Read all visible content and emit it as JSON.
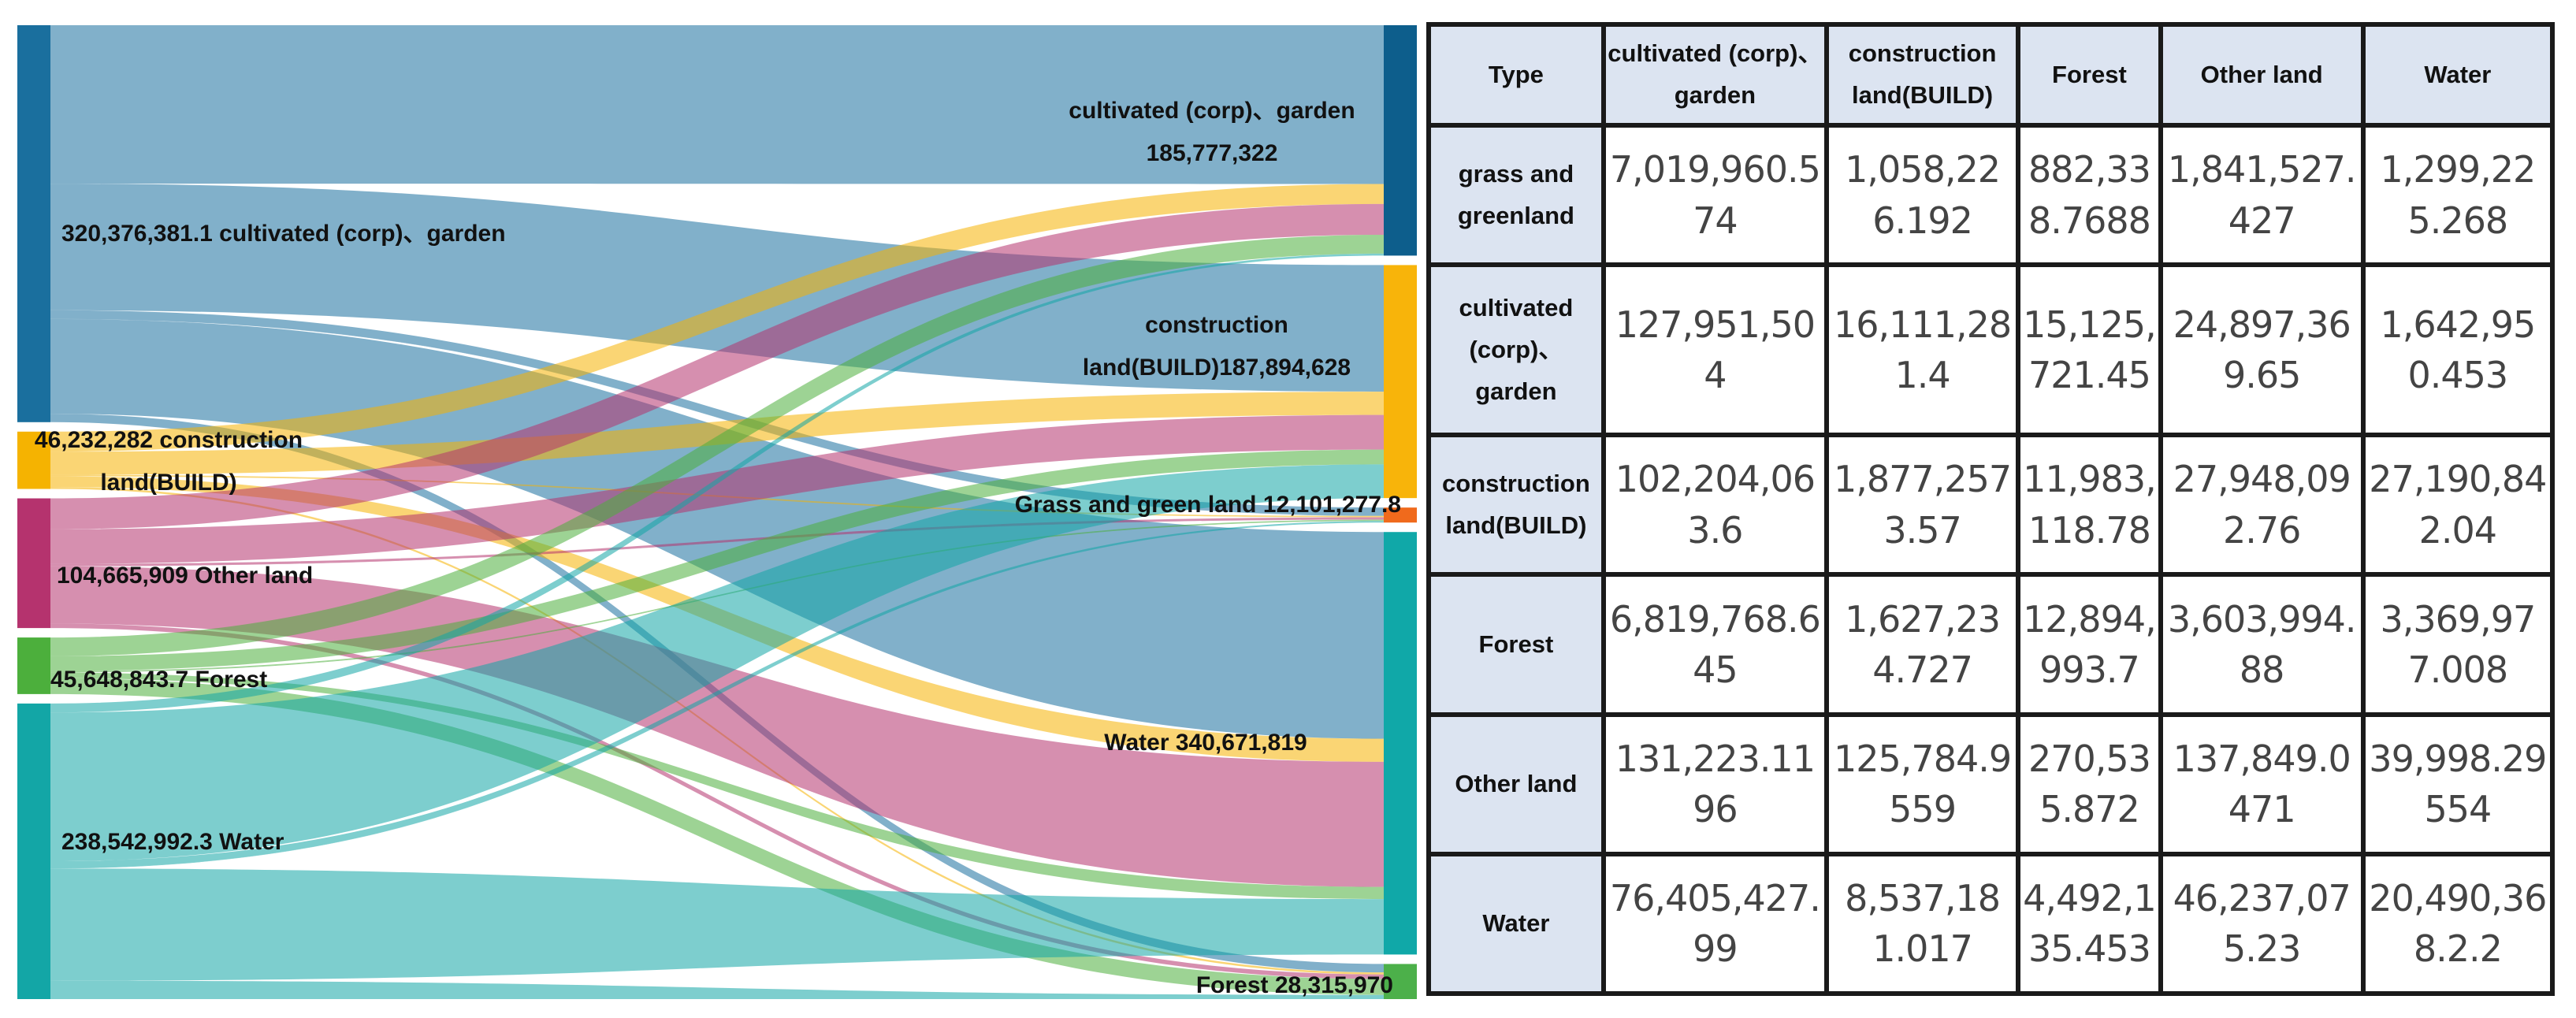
{
  "chart_data": [
    {
      "type": "sankey",
      "title": "",
      "sources": [
        {
          "label": "320,376,381.1 cultivated (corp)、garden",
          "value": 320376381.1,
          "color": "#1a6f9e"
        },
        {
          "label_lines": [
            "46,232,282 construction",
            "land(BUILD)"
          ],
          "value": 46232282,
          "color": "#f5b301"
        },
        {
          "label": "104,665,909 Other land",
          "value": 104665909,
          "color": "#b5336e"
        },
        {
          "label": "45,648,843.7 Forest",
          "value": 45648843.7,
          "color": "#4caf3c"
        },
        {
          "label": "238,542,992.3 Water",
          "value": 238542992.3,
          "color": "#13a6a6"
        }
      ],
      "targets": [
        {
          "label_lines": [
            "cultivated (corp)、garden",
            "185,777,322"
          ],
          "value": 185777322,
          "color": "#0d5e8c"
        },
        {
          "label_lines": [
            "construction",
            "land(BUILD)187,894,628"
          ],
          "value": 187894628,
          "color": "#f8b40a"
        },
        {
          "label": "Grass and green land 12,101,277.8",
          "value": 12101277.8,
          "color": "#f06a1c"
        },
        {
          "label": "Water 340,671,819",
          "value": 340671819,
          "color": "#10a8a8"
        },
        {
          "label": "Forest 28,315,970",
          "value": 28315970,
          "color": "#4cb04a"
        }
      ]
    },
    {
      "type": "table",
      "columns": [
        "Type",
        "cultivated (corp)、garden",
        "construction land(BUILD)",
        "Forest",
        "Other land",
        "Water"
      ],
      "rows": [
        {
          "type": "grass and greenland",
          "values": [
            "7,019,960.574",
            "1,058,226.192",
            "882,338.7688",
            "1,841,527.427",
            "1,299,225.268"
          ]
        },
        {
          "type": "cultivated (corp)、garden",
          "values": [
            "127,951,504",
            "16,111,281.4",
            "15,125,721.45",
            "24,897,369.65",
            "1,642,950.453"
          ]
        },
        {
          "type": "construction land(BUILD)",
          "values": [
            "102,204,063.6",
            "1,877,2573.57",
            "11,983,118.78",
            "27,948,092.76",
            "27,190,842.04"
          ]
        },
        {
          "type": "Forest",
          "values": [
            "6,819,768.645",
            "1,627,234.727",
            "12,894,993.7",
            "3,603,994.88",
            "3,369,977.008"
          ]
        },
        {
          "type": "Other land",
          "values": [
            "131,223.1196",
            "125,784.9559",
            "270,535.872",
            "137,849.0471",
            "39,998.29554"
          ]
        },
        {
          "type": "Water",
          "values": [
            "76,405,427.99",
            "8,537,181.017",
            "4,492,135.453",
            "46,237,075.23",
            "20,490,368.2.2"
          ]
        }
      ]
    }
  ]
}
